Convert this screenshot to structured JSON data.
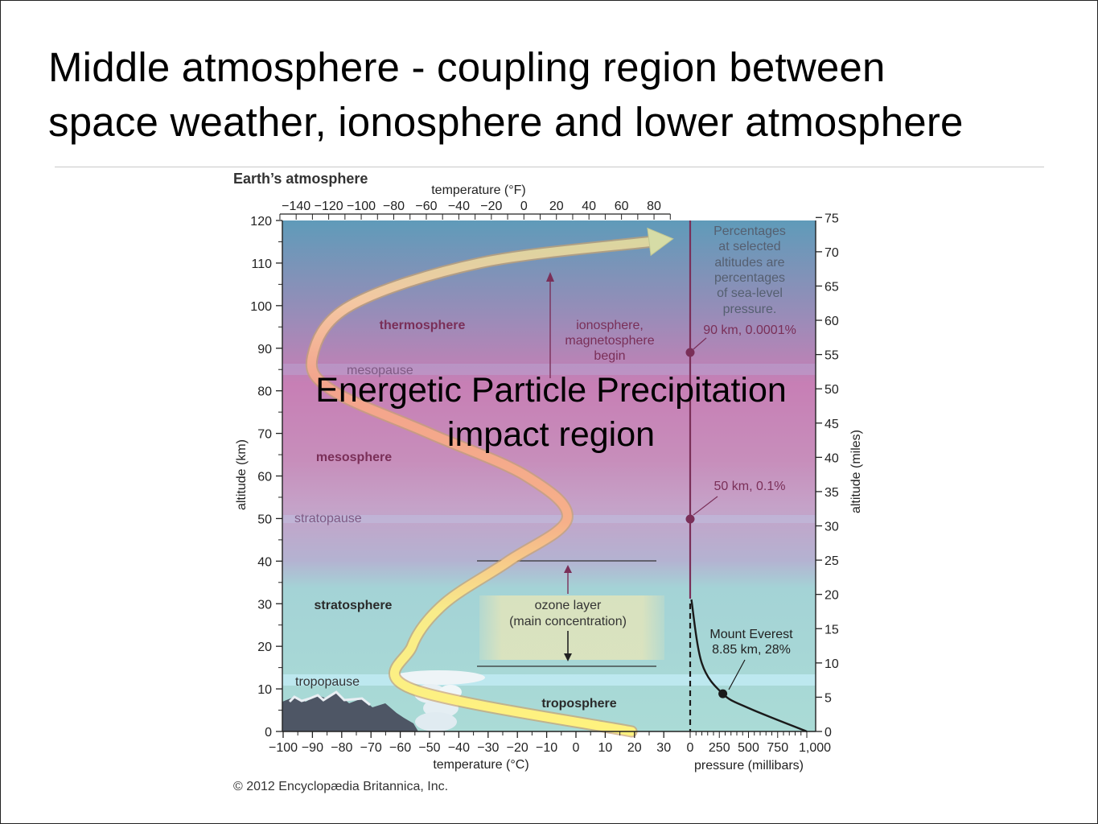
{
  "slide": {
    "title_line1": "Middle atmosphere - coupling region between",
    "title_line2": "space weather, ionosphere and lower atmosphere"
  },
  "overlay": {
    "line1": "Energetic Particle Precipitation",
    "line2": "impact region"
  },
  "figure": {
    "heading": "Earth’s atmosphere",
    "credit": "© 2012 Encyclopædia Britannica, Inc.",
    "top_axis_label": "temperature (°F)",
    "bottom_axis_label": "temperature (°C)",
    "left_axis_label": "altitude (km)",
    "right_axis_label": "altitude (miles)",
    "pressure_axis_label": "pressure (millibars)",
    "km_ticks": [
      "0",
      "10",
      "20",
      "30",
      "40",
      "50",
      "60",
      "70",
      "80",
      "90",
      "100",
      "110",
      "120"
    ],
    "mile_ticks": [
      "0",
      "5",
      "10",
      "15",
      "20",
      "25",
      "30",
      "35",
      "40",
      "45",
      "50",
      "55",
      "60",
      "65",
      "70",
      "75"
    ],
    "c_ticks": [
      "−100",
      "−90",
      "−80",
      "−70",
      "−60",
      "−50",
      "−40",
      "−30",
      "−20",
      "−10",
      "0",
      "10",
      "20",
      "30"
    ],
    "f_ticks": [
      "−140",
      "−120",
      "−100",
      "−80",
      "−60",
      "−40",
      "−20",
      "0",
      "20",
      "40",
      "60",
      "80"
    ],
    "pressure_ticks": [
      "0",
      "250",
      "500",
      "750",
      "1,000"
    ],
    "layers": {
      "thermosphere": "thermosphere",
      "mesosphere": "mesosphere",
      "stratosphere": "stratosphere",
      "troposphere": "troposphere"
    },
    "boundaries": {
      "mesopause": "mesopause",
      "stratopause": "stratopause",
      "tropopause": "tropopause"
    },
    "ionosphere_note": [
      "ionosphere,",
      "magnetosphere",
      "begin"
    ],
    "ozone_note": [
      "ozone layer",
      "(main concentration)"
    ],
    "pressure_note": [
      "Percentages",
      "at selected",
      "altitudes are",
      "percentages",
      "of sea-level",
      "pressure."
    ],
    "callout_90km": "90 km, 0.0001%",
    "callout_50km": "50 km, 0.1%",
    "everest_note": [
      "Mount Everest",
      "8.85 km, 28%"
    ],
    "colors": {
      "thermosphere": "#5d9ab8",
      "mesosphere": "#c37bb4",
      "stratosphere": "#a9d8d5",
      "layer_label": "#7a2f58",
      "boundary_label": "#7f5a84",
      "pressure_line": "#7a2f58"
    },
    "temperature_profile_c": [
      {
        "km": 0,
        "c": 19
      },
      {
        "km": 10,
        "c": -56
      },
      {
        "km": 20,
        "c": -56
      },
      {
        "km": 30,
        "c": -45
      },
      {
        "km": 40,
        "c": -23
      },
      {
        "km": 50,
        "c": -3
      },
      {
        "km": 60,
        "c": -17
      },
      {
        "km": 70,
        "c": -50
      },
      {
        "km": 80,
        "c": -83
      },
      {
        "km": 88,
        "c": -90
      },
      {
        "km": 100,
        "c": -77
      },
      {
        "km": 110,
        "c": -33
      },
      {
        "km": 115,
        "c": 25
      }
    ],
    "pressure_profile": [
      {
        "km": 0,
        "mb": 1000
      },
      {
        "km": 5.5,
        "mb": 500
      },
      {
        "km": 8.85,
        "mb": 280
      },
      {
        "km": 16,
        "mb": 100
      },
      {
        "km": 31,
        "mb": 10
      }
    ]
  }
}
